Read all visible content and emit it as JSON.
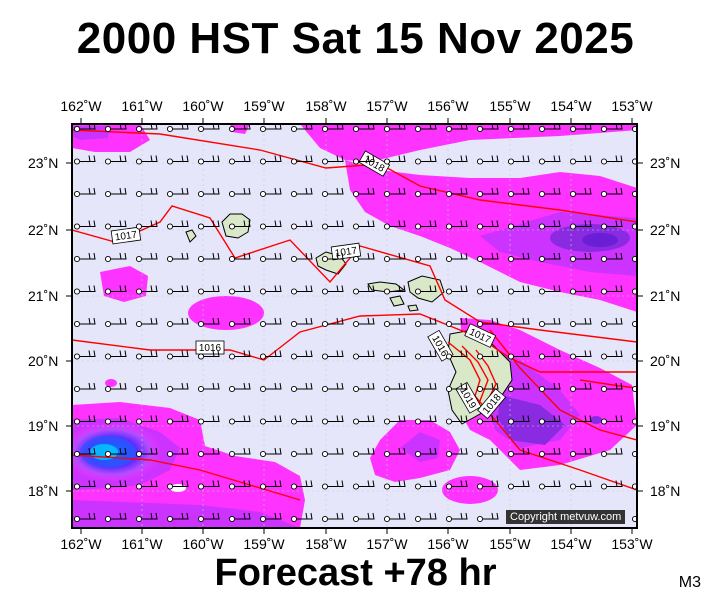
{
  "title": "2000 HST Sat 15 Nov 2025",
  "footer": "Forecast +78 hr",
  "model": "M3",
  "copyright": "Copyright metvuw.com",
  "lon_labels": [
    "162˚W",
    "161˚W",
    "160˚W",
    "159˚W",
    "158˚W",
    "157˚W",
    "156˚W",
    "155˚W",
    "154˚W",
    "153˚W"
  ],
  "lat_labels": [
    "23˚N",
    "22˚N",
    "21˚N",
    "20˚N",
    "19˚N",
    "18˚N"
  ],
  "isobar_labels": [
    "1018",
    "1017",
    "1017",
    "1016",
    "1016",
    "1017",
    "1019",
    "1018"
  ],
  "colors": {
    "background": "#e6e6fa",
    "rain_light": "#ff33ff",
    "rain_mid": "#cc33ff",
    "rain_heavy": "#8a2be2",
    "rain_intense": "#1e3cff",
    "isobar": "#ff0000",
    "land": "#d8e8c8"
  }
}
